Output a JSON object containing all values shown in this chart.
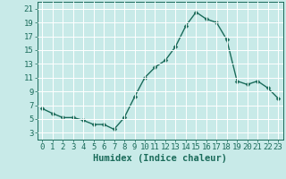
{
  "x": [
    0,
    1,
    2,
    3,
    4,
    5,
    6,
    7,
    8,
    9,
    10,
    11,
    12,
    13,
    14,
    15,
    16,
    17,
    18,
    19,
    20,
    21,
    22,
    23
  ],
  "y": [
    6.5,
    5.8,
    5.2,
    5.2,
    4.8,
    4.2,
    4.2,
    3.5,
    5.2,
    8.2,
    11.0,
    12.5,
    13.5,
    15.5,
    18.5,
    20.5,
    19.5,
    19.0,
    16.5,
    10.5,
    10.0,
    10.5,
    9.5,
    8.0
  ],
  "line_color": "#1a6b5a",
  "marker": "D",
  "markersize": 2.5,
  "linewidth": 1.0,
  "bg_color": "#c8eae8",
  "grid_color": "#ffffff",
  "xlabel": "Humidex (Indice chaleur)",
  "ylim": [
    2,
    22
  ],
  "xlim": [
    -0.5,
    23.5
  ],
  "yticks": [
    3,
    5,
    7,
    9,
    11,
    13,
    15,
    17,
    19,
    21
  ],
  "xticks": [
    0,
    1,
    2,
    3,
    4,
    5,
    6,
    7,
    8,
    9,
    10,
    11,
    12,
    13,
    14,
    15,
    16,
    17,
    18,
    19,
    20,
    21,
    22,
    23
  ],
  "xlabel_fontsize": 7.5,
  "tick_fontsize": 6.5
}
